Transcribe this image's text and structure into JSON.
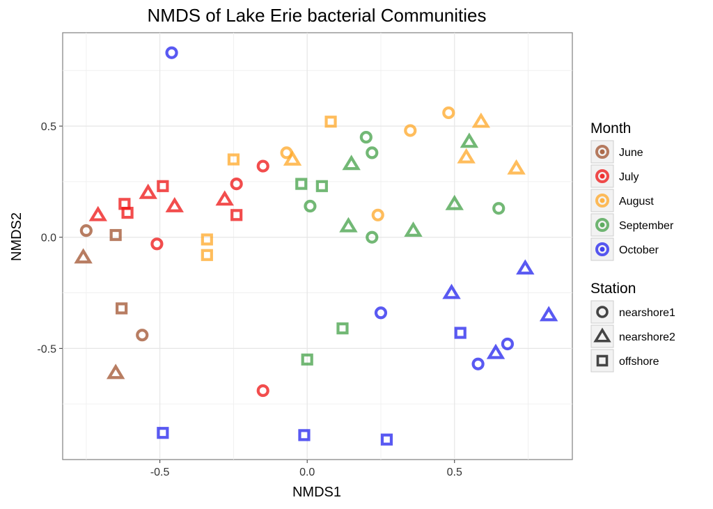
{
  "chart_data": {
    "type": "scatter",
    "title": "NMDS of Lake Erie bacterial Communities",
    "xlabel": "NMDS1",
    "ylabel": "NMDS2",
    "xlim": [
      -0.83,
      0.9
    ],
    "ylim": [
      -1.0,
      0.92
    ],
    "xticks": [
      -0.5,
      0.0,
      0.5
    ],
    "xtick_labels": [
      "-0.5",
      "0.0",
      "0.5"
    ],
    "yticks": [
      -0.5,
      0.0,
      0.5
    ],
    "ytick_labels": [
      "-0.5",
      "0.0",
      "0.5"
    ],
    "grid": true,
    "legend_placement": "right",
    "month_legend": {
      "title": "Month",
      "entries": [
        {
          "label": "June",
          "color": "#a0522d"
        },
        {
          "label": "July",
          "color": "#ee1111"
        },
        {
          "label": "August",
          "color": "#ffa726"
        },
        {
          "label": "September",
          "color": "#43a047"
        },
        {
          "label": "October",
          "color": "#2222ee"
        }
      ]
    },
    "station_legend": {
      "title": "Station",
      "entries": [
        {
          "label": "nearshore1",
          "shape": "circle"
        },
        {
          "label": "nearshore2",
          "shape": "triangle"
        },
        {
          "label": "offshore",
          "shape": "square"
        }
      ]
    },
    "points": [
      {
        "x": -0.75,
        "y": 0.03,
        "month": "June",
        "station": "nearshore1"
      },
      {
        "x": -0.56,
        "y": -0.44,
        "month": "June",
        "station": "nearshore1"
      },
      {
        "x": -0.76,
        "y": -0.09,
        "month": "June",
        "station": "nearshore2"
      },
      {
        "x": -0.65,
        "y": -0.61,
        "month": "June",
        "station": "nearshore2"
      },
      {
        "x": -0.65,
        "y": 0.01,
        "month": "June",
        "station": "offshore"
      },
      {
        "x": -0.63,
        "y": -0.32,
        "month": "June",
        "station": "offshore"
      },
      {
        "x": -0.51,
        "y": -0.03,
        "month": "July",
        "station": "nearshore1"
      },
      {
        "x": -0.24,
        "y": 0.24,
        "month": "July",
        "station": "nearshore1"
      },
      {
        "x": -0.15,
        "y": 0.32,
        "month": "July",
        "station": "nearshore1"
      },
      {
        "x": -0.15,
        "y": -0.69,
        "month": "July",
        "station": "nearshore1"
      },
      {
        "x": -0.71,
        "y": 0.1,
        "month": "July",
        "station": "nearshore2"
      },
      {
        "x": -0.54,
        "y": 0.2,
        "month": "July",
        "station": "nearshore2"
      },
      {
        "x": -0.45,
        "y": 0.14,
        "month": "July",
        "station": "nearshore2"
      },
      {
        "x": -0.28,
        "y": 0.17,
        "month": "July",
        "station": "nearshore2"
      },
      {
        "x": -0.62,
        "y": 0.15,
        "month": "July",
        "station": "offshore"
      },
      {
        "x": -0.61,
        "y": 0.11,
        "month": "July",
        "station": "offshore"
      },
      {
        "x": -0.49,
        "y": 0.23,
        "month": "July",
        "station": "offshore"
      },
      {
        "x": -0.24,
        "y": 0.1,
        "month": "July",
        "station": "offshore"
      },
      {
        "x": -0.07,
        "y": 0.38,
        "month": "August",
        "station": "nearshore1"
      },
      {
        "x": 0.24,
        "y": 0.1,
        "month": "August",
        "station": "nearshore1"
      },
      {
        "x": 0.35,
        "y": 0.48,
        "month": "August",
        "station": "nearshore1"
      },
      {
        "x": 0.48,
        "y": 0.56,
        "month": "August",
        "station": "nearshore1"
      },
      {
        "x": -0.05,
        "y": 0.35,
        "month": "August",
        "station": "nearshore2"
      },
      {
        "x": 0.54,
        "y": 0.36,
        "month": "August",
        "station": "nearshore2"
      },
      {
        "x": 0.59,
        "y": 0.52,
        "month": "August",
        "station": "nearshore2"
      },
      {
        "x": 0.71,
        "y": 0.31,
        "month": "August",
        "station": "nearshore2"
      },
      {
        "x": -0.25,
        "y": 0.35,
        "month": "August",
        "station": "offshore"
      },
      {
        "x": -0.34,
        "y": -0.01,
        "month": "August",
        "station": "offshore"
      },
      {
        "x": -0.34,
        "y": -0.08,
        "month": "August",
        "station": "offshore"
      },
      {
        "x": 0.08,
        "y": 0.52,
        "month": "August",
        "station": "offshore"
      },
      {
        "x": 0.01,
        "y": 0.14,
        "month": "September",
        "station": "nearshore1"
      },
      {
        "x": 0.2,
        "y": 0.45,
        "month": "September",
        "station": "nearshore1"
      },
      {
        "x": 0.22,
        "y": 0.38,
        "month": "September",
        "station": "nearshore1"
      },
      {
        "x": 0.22,
        "y": 0.0,
        "month": "September",
        "station": "nearshore1"
      },
      {
        "x": 0.65,
        "y": 0.13,
        "month": "September",
        "station": "nearshore1"
      },
      {
        "x": 0.15,
        "y": 0.33,
        "month": "September",
        "station": "nearshore2"
      },
      {
        "x": 0.14,
        "y": 0.05,
        "month": "September",
        "station": "nearshore2"
      },
      {
        "x": 0.36,
        "y": 0.03,
        "month": "September",
        "station": "nearshore2"
      },
      {
        "x": 0.5,
        "y": 0.15,
        "month": "September",
        "station": "nearshore2"
      },
      {
        "x": 0.55,
        "y": 0.43,
        "month": "September",
        "station": "nearshore2"
      },
      {
        "x": -0.02,
        "y": 0.24,
        "month": "September",
        "station": "offshore"
      },
      {
        "x": 0.05,
        "y": 0.23,
        "month": "September",
        "station": "offshore"
      },
      {
        "x": 0.0,
        "y": -0.55,
        "month": "September",
        "station": "offshore"
      },
      {
        "x": 0.12,
        "y": -0.41,
        "month": "September",
        "station": "offshore"
      },
      {
        "x": -0.46,
        "y": 0.83,
        "month": "October",
        "station": "nearshore1"
      },
      {
        "x": 0.25,
        "y": -0.34,
        "month": "October",
        "station": "nearshore1"
      },
      {
        "x": 0.58,
        "y": -0.57,
        "month": "October",
        "station": "nearshore1"
      },
      {
        "x": 0.68,
        "y": -0.48,
        "month": "October",
        "station": "nearshore1"
      },
      {
        "x": 0.49,
        "y": -0.25,
        "month": "October",
        "station": "nearshore2"
      },
      {
        "x": 0.64,
        "y": -0.52,
        "month": "October",
        "station": "nearshore2"
      },
      {
        "x": 0.74,
        "y": -0.14,
        "month": "October",
        "station": "nearshore2"
      },
      {
        "x": 0.82,
        "y": -0.35,
        "month": "October",
        "station": "nearshore2"
      },
      {
        "x": -0.49,
        "y": -0.88,
        "month": "October",
        "station": "offshore"
      },
      {
        "x": -0.01,
        "y": -0.89,
        "month": "October",
        "station": "offshore"
      },
      {
        "x": 0.27,
        "y": -0.91,
        "month": "October",
        "station": "offshore"
      },
      {
        "x": 0.52,
        "y": -0.43,
        "month": "October",
        "station": "offshore"
      }
    ]
  }
}
